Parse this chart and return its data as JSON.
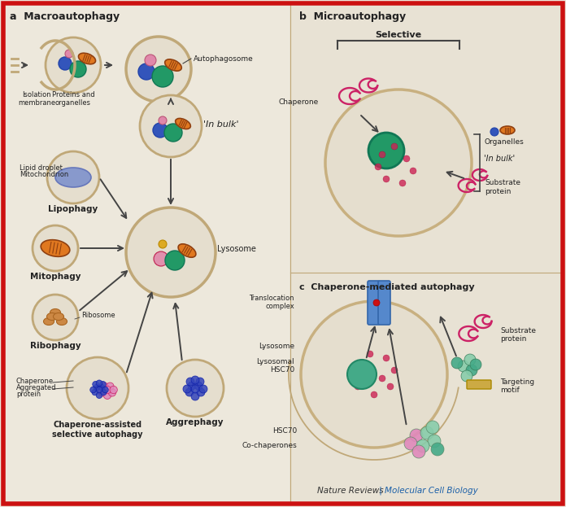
{
  "background_color": "#ede8dc",
  "border_color": "#cc1111",
  "panel_a_title": "a  Macroautophagy",
  "panel_b_title": "b  Microautophagy",
  "panel_c_title": "c  Chaperone-mediated autophagy",
  "footer_text1": "Nature Reviews",
  "footer_text2": " | Molecular Cell Biology",
  "footer_color1": "#333333",
  "footer_color2": "#1a5fa8",
  "colors": {
    "bg": "#ede8dc",
    "circle_fill": "#e5dece",
    "circle_edge": "#c0a878",
    "mitochondria_fill": "#e07820",
    "mitochondria_edge": "#904010",
    "blue_sphere": "#3355bb",
    "teal_sphere": "#229966",
    "pink_sphere": "#e088aa",
    "yellow_sphere": "#ddaa22",
    "lipid_droplet": "#8899cc",
    "ribosome": "#cc8844",
    "chaperone_pink": "#cc2266",
    "protein_blue": "#2233aa",
    "lysosome_fill": "#e5dece",
    "lysosome_edge": "#c0a878",
    "lysosome_dots": "#cc2255",
    "hsc70_blue": "#5588cc",
    "teal_cma": "#44aa88",
    "green_cma": "#88cc99",
    "pink_cma": "#ee88bb",
    "targeting_motif": "#ccaa44",
    "arrow_color": "#444444",
    "text_color": "#222222"
  }
}
